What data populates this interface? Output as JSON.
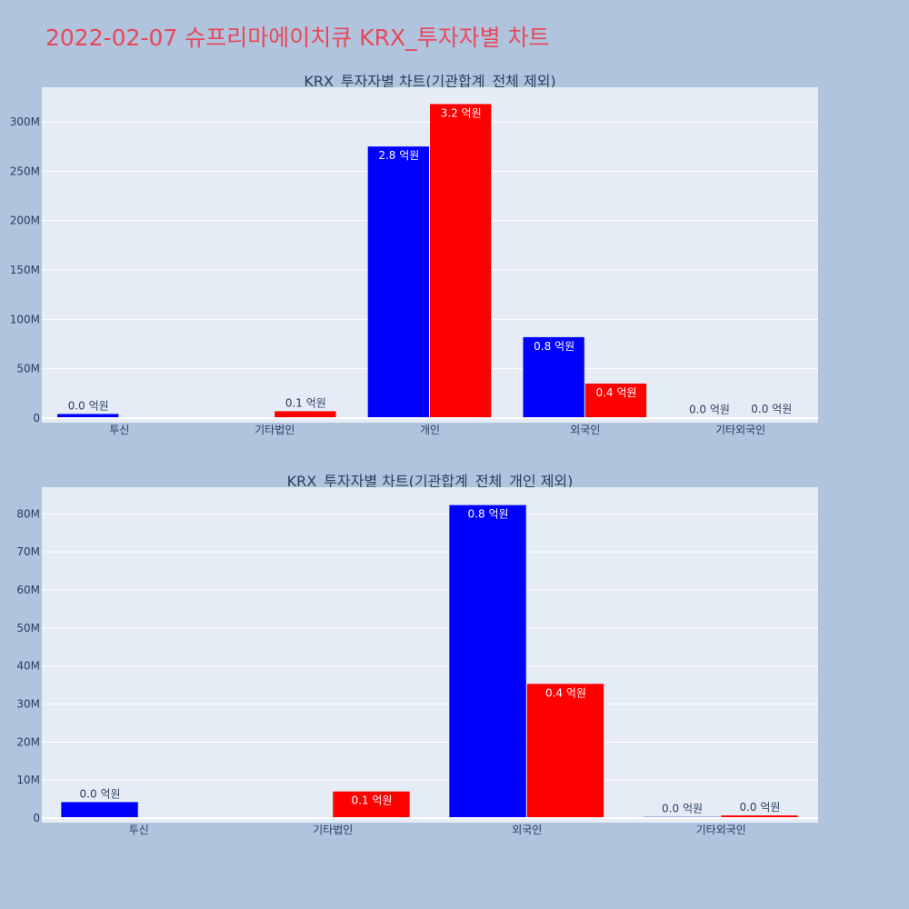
{
  "page": {
    "title": "2022-02-07 슈프리마에이치큐 KRX_투자자별 차트",
    "title_color": "#e8485a",
    "background": "#b0c4de",
    "plot_background": "#e5ecf6"
  },
  "chart_data": [
    {
      "type": "bar",
      "title": "KRX_투자자별 차트(기관합계_전체 제외)",
      "categories": [
        "투신",
        "기타법인",
        "개인",
        "외국인",
        "기타외국인"
      ],
      "ylim": [
        0,
        335000000
      ],
      "yticks": [
        0,
        50000000,
        100000000,
        150000000,
        200000000,
        250000000,
        300000000
      ],
      "ytick_labels": [
        "0",
        "50M",
        "100M",
        "150M",
        "200M",
        "250M",
        "300M"
      ],
      "grid": true,
      "series": [
        {
          "color": "#0000ff",
          "values": [
            4200000,
            0,
            275000000,
            82000000,
            300000
          ],
          "labels": [
            "0.0 억원",
            "",
            "2.8 억원",
            "0.8 억원",
            "0.0 억원"
          ]
        },
        {
          "color": "#ff0000",
          "values": [
            0,
            7000000,
            318000000,
            35000000,
            700000
          ],
          "labels": [
            "",
            "0.1 억원",
            "3.2 억원",
            "0.4 억원",
            "0.0 억원"
          ]
        }
      ]
    },
    {
      "type": "bar",
      "title": "KRX_투자자별 차트(기관합계_전체_개인 제외)",
      "categories": [
        "투신",
        "기타법인",
        "외국인",
        "기타외국인"
      ],
      "ylim": [
        0,
        87000000
      ],
      "yticks": [
        0,
        10000000,
        20000000,
        30000000,
        40000000,
        50000000,
        60000000,
        70000000,
        80000000
      ],
      "ytick_labels": [
        "0",
        "10M",
        "20M",
        "30M",
        "40M",
        "50M",
        "60M",
        "70M",
        "80M"
      ],
      "grid": true,
      "series": [
        {
          "color": "#0000ff",
          "values": [
            4200000,
            0,
            82300000,
            300000
          ],
          "labels": [
            "0.0 억원",
            "",
            "0.8 억원",
            "0.0 억원"
          ]
        },
        {
          "color": "#ff0000",
          "values": [
            0,
            7000000,
            35300000,
            700000
          ],
          "labels": [
            "",
            "0.1 억원",
            "0.4 억원",
            "0.0 억원"
          ]
        }
      ]
    }
  ]
}
